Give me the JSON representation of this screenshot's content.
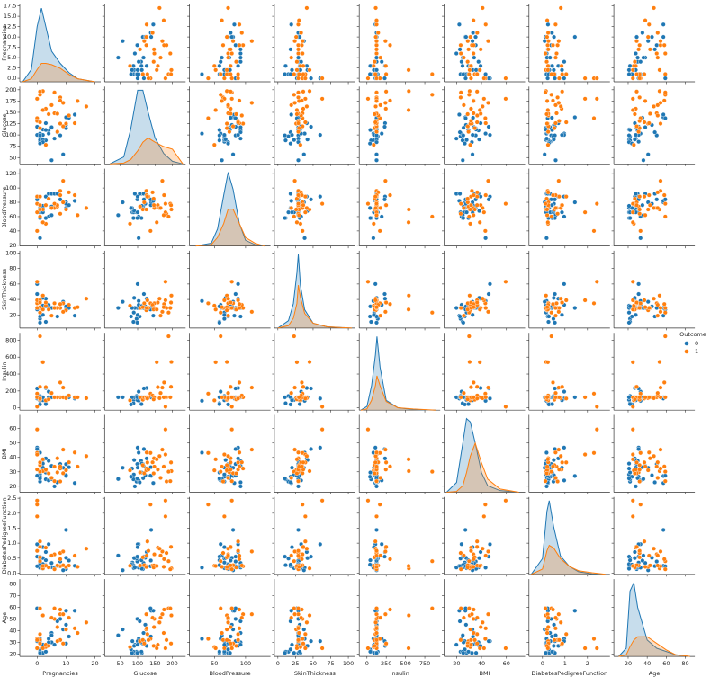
{
  "chart_data": {
    "type": "pairplot",
    "legend_title": "Outcome",
    "variables": [
      {
        "name": "Pregnancies",
        "xlim": [
          -6,
          22
        ],
        "xticks": [
          0,
          10,
          20
        ],
        "ylim": [
          -0.85,
          17.85
        ],
        "yticks": [
          {
            "value": 0,
            "label": "0.0"
          },
          2.5,
          {
            "value": 5,
            "label": "5.0"
          },
          7.5,
          {
            "value": 10,
            "label": "10.0"
          },
          12.5,
          {
            "value": 15,
            "label": "15.0"
          },
          17.5
        ],
        "kde_x": [
          -5,
          -2,
          0,
          1.5,
          3,
          5,
          8,
          11,
          14,
          20
        ]
      },
      {
        "name": "Glucose",
        "xlim": [
          5,
          238
        ],
        "xticks": [
          50,
          100,
          150,
          200
        ],
        "ylim": [
          36,
          207
        ],
        "yticks": [
          50,
          75,
          100,
          125,
          150,
          175,
          200
        ],
        "kde_x": [
          20,
          60,
          80,
          100,
          115,
          130,
          150,
          175,
          200,
          230
        ]
      },
      {
        "name": "BloodPressure",
        "xlim": [
          10,
          140
        ],
        "xticks": [
          50,
          100
        ],
        "ylim": [
          19,
          127
        ],
        "yticks": [
          20,
          40,
          60,
          80,
          100,
          120
        ],
        "kde_x": [
          20,
          45,
          55,
          65,
          72,
          80,
          90,
          100,
          115,
          130
        ]
      },
      {
        "name": "SkinThickness",
        "xlim": [
          -5,
          110
        ],
        "xticks": [
          0,
          25,
          50,
          75,
          100
        ],
        "ylim": [
          3,
          103
        ],
        "yticks": [
          20,
          40,
          60,
          80,
          100
        ],
        "kde_x": [
          0,
          15,
          22,
          27,
          29,
          32,
          38,
          50,
          70,
          105
        ]
      },
      {
        "name": "Insulin",
        "xlim": [
          -100,
          950
        ],
        "xticks": [
          0,
          250,
          500,
          750
        ],
        "ylim": [
          -27,
          887
        ],
        "yticks": [
          0,
          200,
          400,
          600,
          800
        ],
        "kde_x": [
          -80,
          0,
          60,
          110,
          130,
          170,
          250,
          400,
          600,
          900
        ]
      },
      {
        "name": "BMI",
        "xlim": [
          10,
          75
        ],
        "xticks": [
          20,
          40,
          60
        ],
        "ylim": [
          15.8,
          69.5
        ],
        "yticks": [
          20,
          30,
          40,
          50,
          60
        ],
        "kde_x": [
          12,
          20,
          25,
          28,
          31,
          35,
          40,
          45,
          55,
          70
        ]
      },
      {
        "name": "DiabetesPedigreeFunction",
        "xlim": [
          -0.6,
          3.0
        ],
        "xticks": [
          0,
          1,
          2
        ],
        "ylim": [
          -0.04,
          2.54
        ],
        "yticks": [
          {
            "value": 0,
            "label": "0.0"
          },
          0.5,
          {
            "value": 1,
            "label": "1.0"
          },
          1.5,
          {
            "value": 2,
            "label": "2.0"
          },
          2.5
        ],
        "kde_x": [
          -0.5,
          0,
          0.2,
          0.3,
          0.5,
          0.8,
          1.2,
          1.6,
          2.2,
          2.8
        ]
      },
      {
        "name": "Age",
        "xlim": [
          5,
          90
        ],
        "xticks": [
          20,
          40,
          60,
          80
        ],
        "ylim": [
          18,
          84
        ],
        "yticks": [
          20,
          30,
          40,
          50,
          60,
          70,
          80
        ],
        "kde_x": [
          10,
          18,
          22,
          26,
          30,
          40,
          50,
          60,
          70,
          85
        ]
      }
    ],
    "series": [
      {
        "name": "0",
        "color": "#1f77b4",
        "rows": [
          [
            1,
            85,
            66,
            29,
            125,
            26.6,
            0.351,
            31
          ],
          [
            1,
            89,
            66,
            23,
            94,
            28.1,
            0.167,
            21
          ],
          [
            5,
            116,
            74,
            29,
            125,
            25.6,
            0.201,
            30
          ],
          [
            10,
            115,
            72,
            29,
            125,
            35.3,
            0.134,
            29
          ],
          [
            4,
            110,
            92,
            29,
            125,
            37.6,
            0.191,
            30
          ],
          [
            10,
            139,
            80,
            29,
            125,
            27.1,
            1.441,
            57
          ],
          [
            1,
            103,
            30,
            38,
            83,
            43.3,
            0.183,
            33
          ],
          [
            3,
            126,
            88,
            41,
            235,
            39.3,
            0.704,
            27
          ],
          [
            8,
            99,
            84,
            29,
            125,
            35.4,
            0.388,
            50
          ],
          [
            1,
            97,
            66,
            15,
            140,
            23.2,
            0.487,
            22
          ],
          [
            13,
            145,
            82,
            19,
            110,
            22.2,
            0.245,
            57
          ],
          [
            5,
            117,
            92,
            29,
            125,
            34.1,
            0.337,
            38
          ],
          [
            3,
            88,
            58,
            11,
            54,
            24.8,
            0.267,
            22
          ],
          [
            6,
            92,
            92,
            29,
            125,
            19.9,
            0.188,
            28
          ],
          [
            10,
            122,
            78,
            31,
            125,
            27.6,
            0.512,
            45
          ],
          [
            4,
            103,
            60,
            33,
            192,
            24.0,
            0.966,
            33
          ],
          [
            11,
            138,
            76,
            29,
            125,
            33.2,
            0.42,
            35
          ],
          [
            7,
            106,
            92,
            18,
            125,
            22.7,
            0.235,
            48
          ],
          [
            2,
            90,
            68,
            42,
            125,
            38.2,
            0.503,
            27
          ],
          [
            0,
            100,
            88,
            60,
            110,
            46.8,
            0.962,
            31
          ],
          [
            2,
            84,
            72,
            29,
            125,
            32.3,
            0.304,
            21
          ],
          [
            1,
            81,
            72,
            18,
            40,
            26.6,
            0.283,
            24
          ],
          [
            0,
            118,
            84,
            47,
            230,
            45.8,
            0.551,
            31
          ],
          [
            2,
            100,
            66,
            20,
            90,
            32.9,
            0.867,
            28
          ],
          [
            5,
            44,
            62,
            29,
            125,
            25.0,
            0.587,
            36
          ],
          [
            2,
            112,
            75,
            32,
            125,
            35.7,
            0.148,
            21
          ],
          [
            0,
            137,
            84,
            27,
            125,
            27.3,
            0.231,
            59
          ],
          [
            9,
            57,
            80,
            37,
            125,
            32.8,
            0.096,
            41
          ],
          [
            1,
            99,
            58,
            10,
            125,
            25.4,
            0.551,
            21
          ],
          [
            3,
            111,
            58,
            31,
            44,
            29.5,
            0.43,
            22
          ]
        ],
        "kde": [
          [
            0,
            0.02,
            0.09,
            0.12,
            0.09,
            0.05,
            0.03,
            0.015,
            0.005,
            0
          ],
          [
            0,
            0.0008,
            0.004,
            0.0085,
            0.0085,
            0.006,
            0.003,
            0.0012,
            0.0003,
            0
          ],
          [
            0,
            0.001,
            0.006,
            0.018,
            0.026,
            0.02,
            0.008,
            0.002,
            0.0005,
            0
          ],
          [
            0,
            0.006,
            0.02,
            0.045,
            0.06,
            0.035,
            0.015,
            0.004,
            0.001,
            0
          ],
          [
            0,
            0.0003,
            0.002,
            0.0045,
            0.006,
            0.0035,
            0.0008,
            0.0002,
            5e-05,
            0
          ],
          [
            0,
            0.006,
            0.03,
            0.045,
            0.043,
            0.03,
            0.012,
            0.004,
            0.001,
            0
          ],
          [
            0,
            0.3,
            1.2,
            1.4,
            0.9,
            0.35,
            0.15,
            0.05,
            0.01,
            0
          ],
          [
            0,
            0.005,
            0.04,
            0.045,
            0.03,
            0.01,
            0.005,
            0.003,
            0.001,
            0
          ]
        ]
      },
      {
        "name": "1",
        "color": "#ff7f0e",
        "rows": [
          [
            6,
            148,
            72,
            35,
            125,
            33.6,
            0.627,
            50
          ],
          [
            8,
            183,
            64,
            29,
            125,
            23.3,
            0.672,
            32
          ],
          [
            0,
            137,
            40,
            35,
            168,
            43.1,
            2.288,
            33
          ],
          [
            3,
            78,
            50,
            32,
            88,
            31.0,
            0.248,
            26
          ],
          [
            2,
            197,
            70,
            45,
            543,
            30.5,
            0.158,
            53
          ],
          [
            8,
            125,
            96,
            29,
            125,
            32.3,
            0.232,
            54
          ],
          [
            7,
            107,
            74,
            29,
            125,
            29.6,
            0.254,
            31
          ],
          [
            1,
            115,
            70,
            30,
            96,
            34.6,
            0.529,
            32
          ],
          [
            9,
            119,
            80,
            35,
            125,
            29.0,
            0.263,
            29
          ],
          [
            11,
            143,
            94,
            33,
            146,
            36.6,
            0.254,
            51
          ],
          [
            10,
            125,
            70,
            26,
            115,
            31.1,
            0.205,
            41
          ],
          [
            7,
            147,
            76,
            29,
            125,
            39.4,
            0.257,
            43
          ],
          [
            3,
            158,
            76,
            36,
            245,
            31.6,
            0.851,
            28
          ],
          [
            0,
            180,
            66,
            39,
            125,
            42.0,
            1.893,
            25
          ],
          [
            9,
            171,
            110,
            24,
            240,
            45.4,
            0.721,
            54
          ],
          [
            17,
            163,
            72,
            41,
            114,
            40.9,
            0.817,
            47
          ],
          [
            1,
            189,
            60,
            23,
            846,
            30.1,
            0.398,
            59
          ],
          [
            5,
            166,
            72,
            19,
            175,
            25.8,
            0.587,
            51
          ],
          [
            0,
            131,
            88,
            29,
            125,
            31.6,
            0.743,
            32
          ],
          [
            4,
            146,
            85,
            27,
            100,
            28.9,
            0.189,
            27
          ],
          [
            2,
            155,
            52,
            27,
            540,
            38.7,
            0.24,
            25
          ],
          [
            13,
            126,
            90,
            29,
            125,
            43.4,
            0.583,
            42
          ],
          [
            1,
            128,
            88,
            39,
            110,
            36.5,
            1.057,
            37
          ],
          [
            6,
            194,
            78,
            29,
            125,
            23.5,
            0.129,
            59
          ],
          [
            0,
            180,
            78,
            63,
            14,
            59.4,
            2.42,
            25
          ],
          [
            8,
            176,
            90,
            34,
            300,
            33.7,
            0.467,
            58
          ],
          [
            1,
            196,
            76,
            36,
            249,
            36.5,
            0.875,
            29
          ],
          [
            14,
            175,
            62,
            30,
            125,
            33.6,
            0.212,
            38
          ]
        ],
        "kde": [
          [
            0,
            0.005,
            0.02,
            0.03,
            0.03,
            0.028,
            0.022,
            0.012,
            0.005,
            0
          ],
          [
            0,
            0.0001,
            0.0005,
            0.0015,
            0.0025,
            0.003,
            0.0025,
            0.002,
            0.0017,
            0
          ],
          [
            0,
            0.0005,
            0.003,
            0.008,
            0.013,
            0.013,
            0.008,
            0.003,
            0.001,
            0
          ],
          [
            0,
            0.002,
            0.008,
            0.02,
            0.035,
            0.025,
            0.012,
            0.004,
            0.001,
            0
          ],
          [
            0,
            0.0001,
            0.0008,
            0.002,
            0.0028,
            0.002,
            0.0007,
            0.0002,
            0.0001,
            0
          ],
          [
            0,
            0.0005,
            0.004,
            0.012,
            0.022,
            0.03,
            0.018,
            0.008,
            0.002,
            0
          ],
          [
            0,
            0.1,
            0.45,
            0.55,
            0.5,
            0.3,
            0.15,
            0.07,
            0.03,
            0
          ],
          [
            0,
            0.001,
            0.006,
            0.01,
            0.012,
            0.012,
            0.008,
            0.004,
            0.001,
            0
          ]
        ]
      }
    ]
  }
}
